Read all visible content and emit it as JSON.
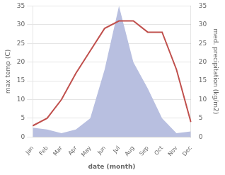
{
  "chart_data": {
    "type": "line",
    "xlabel": "date (month)",
    "ylabel": "max temp (C)",
    "y2label": "med. precipitation (kg/m2)",
    "categories": [
      "Jan",
      "Feb",
      "Mar",
      "Apr",
      "May",
      "Jun",
      "Jul",
      "Aug",
      "Sep",
      "Oct",
      "Nov",
      "Dec"
    ],
    "series": [
      {
        "type": "area",
        "axis": "y2",
        "color": "#b8bfe0",
        "values": [
          2.5,
          2,
          1,
          2,
          5,
          18,
          35,
          20,
          13,
          5,
          1,
          1.5
        ]
      },
      {
        "type": "line",
        "color": "#c0504d",
        "values": [
          3,
          5,
          10,
          17,
          23,
          29,
          31,
          31,
          28,
          28,
          18,
          4
        ]
      }
    ],
    "ylim": [
      0,
      35
    ],
    "yticks": [
      0,
      5,
      10,
      15,
      20,
      25,
      30,
      35
    ],
    "y2lim": [
      0,
      35
    ],
    "y2ticks": [
      0,
      5,
      10,
      15,
      20,
      25,
      30,
      35
    ],
    "grid": true
  }
}
